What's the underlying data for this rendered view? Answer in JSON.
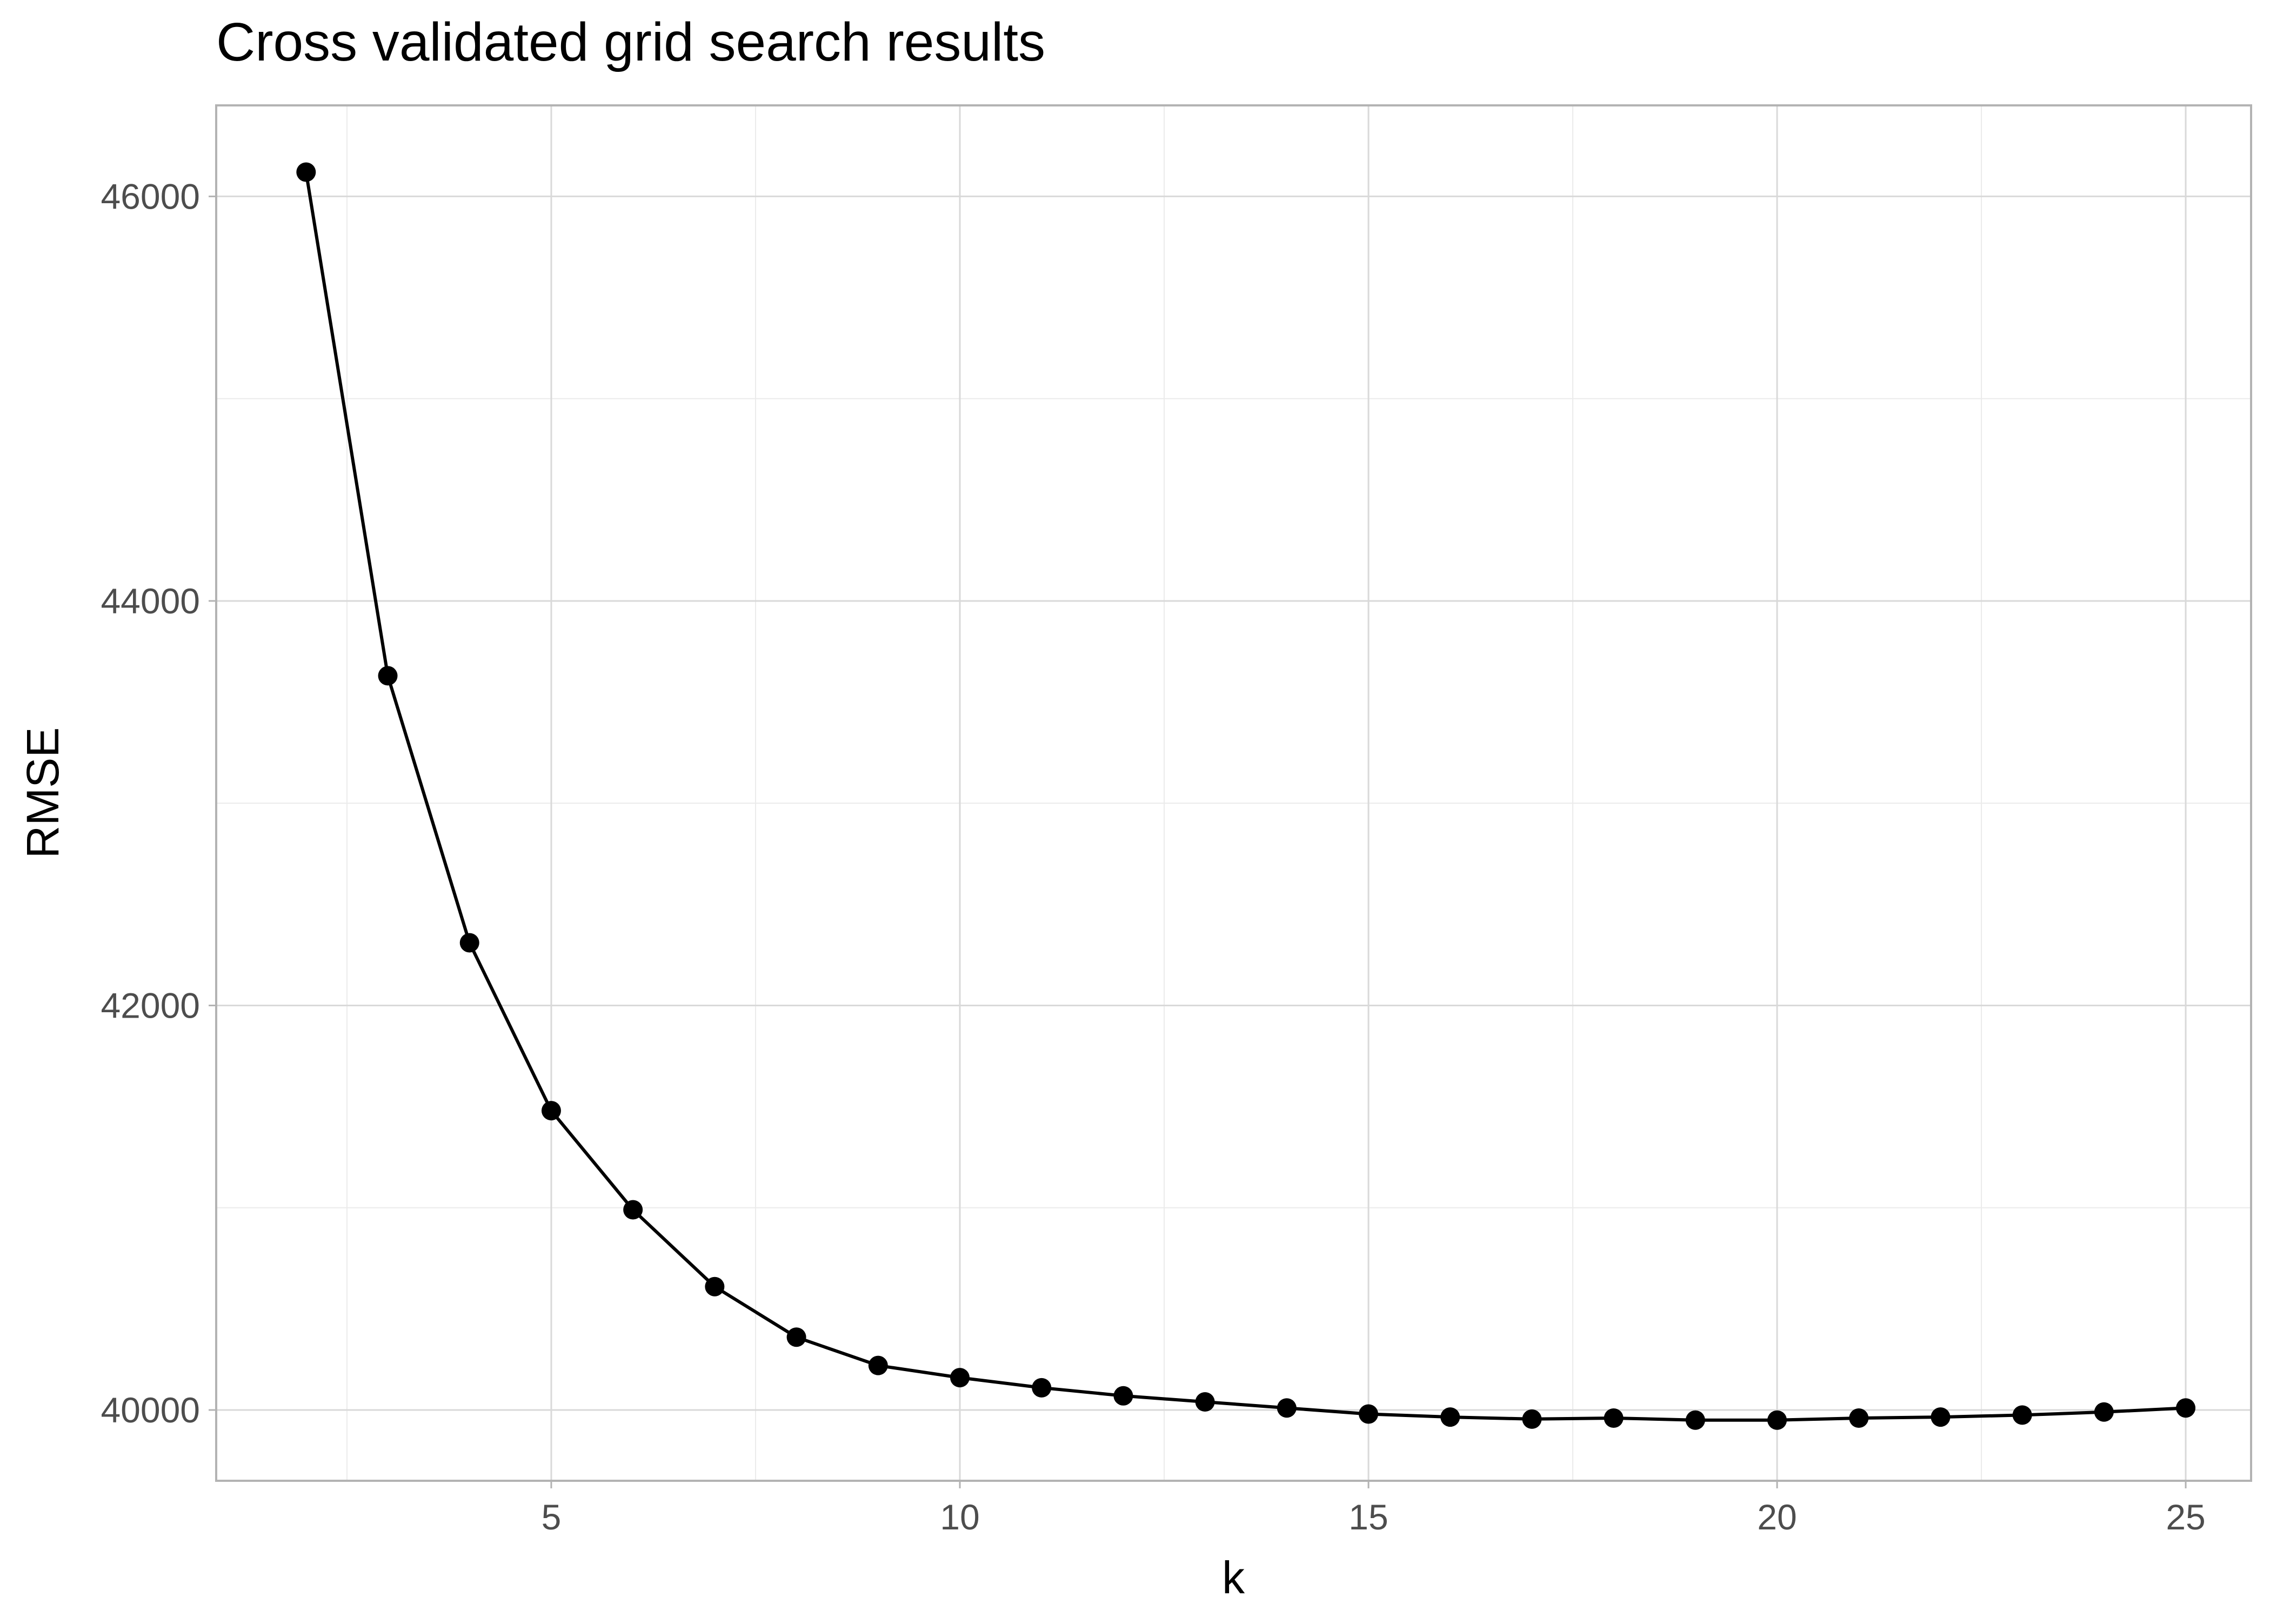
{
  "chart_data": {
    "type": "line",
    "title": "Cross validated grid search results",
    "xlabel": "k",
    "ylabel": "RMSE",
    "xlim": [
      0.9,
      25.8
    ],
    "ylim": [
      39650,
      46450
    ],
    "x_ticks": [
      5,
      10,
      15,
      20,
      25
    ],
    "y_ticks": [
      40000,
      42000,
      44000,
      46000
    ],
    "x_minor_ticks": [
      2.5,
      7.5,
      12.5,
      17.5,
      22.5
    ],
    "y_minor_ticks": [
      41000,
      43000,
      45000
    ],
    "grid": true,
    "legend": "none",
    "colors": {
      "line": "#000000",
      "point": "#000000",
      "panel_border": "#b3b3b3",
      "grid_major": "#d9d9d9",
      "grid_minor": "#ebebeb",
      "tick_label": "#4d4d4d",
      "text": "#000000"
    },
    "series": [
      {
        "x": [
          2,
          3,
          4,
          5,
          6,
          7,
          8,
          9,
          10,
          11,
          12,
          13,
          14,
          15,
          16,
          17,
          18,
          19,
          20,
          21,
          22,
          23,
          24,
          25
        ],
        "y": [
          46120,
          43630,
          42310,
          41480,
          40990,
          40610,
          40360,
          40220,
          40160,
          40110,
          40070,
          40040,
          40010,
          39980,
          39965,
          39955,
          39960,
          39950,
          39950,
          39960,
          39965,
          39975,
          39990,
          40010
        ]
      }
    ]
  }
}
